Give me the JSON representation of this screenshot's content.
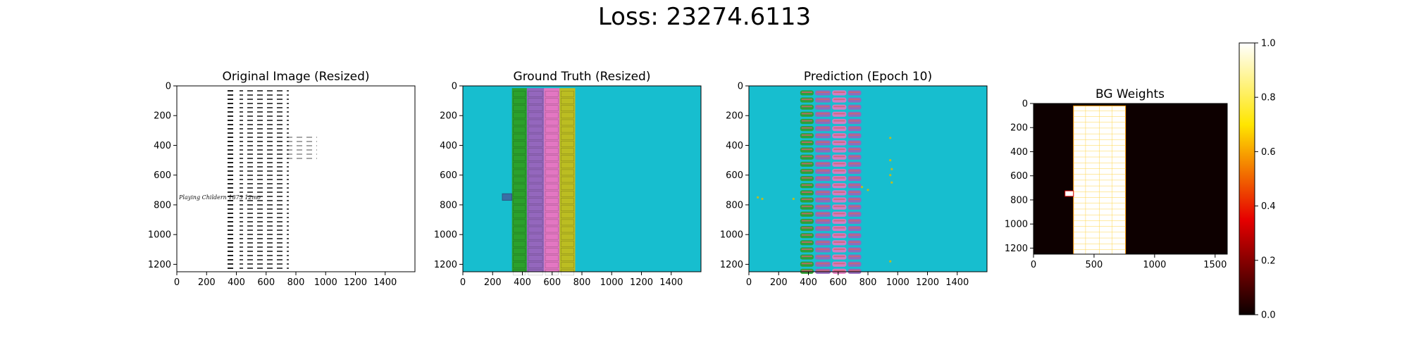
{
  "figure": {
    "suptitle": "Loss: 23274.6113"
  },
  "colors": {
    "background_cyan": "#17becf",
    "green": "#2ca02c",
    "purple": "#9467bd",
    "pink": "#e377c2",
    "olive": "#bcbd22",
    "blue": "#3a6ea5",
    "weights_bg": "#0d0000",
    "weights_fg": "#ffffff",
    "weights_line": "#ff9900"
  },
  "chart_data": [
    {
      "type": "heatmap",
      "title": "Original Image (Resized)",
      "x_ticks": [
        "0",
        "200",
        "400",
        "600",
        "800",
        "1000",
        "1200",
        "1400"
      ],
      "y_ticks": [
        "0",
        "200",
        "400",
        "600",
        "800",
        "1000",
        "1200"
      ],
      "xlim": [
        0,
        1600
      ],
      "ylim": [
        1250,
        0
      ],
      "content": "handwritten ledger columns on white background",
      "handwritten_text": "Playing Childern 1873 12mo"
    },
    {
      "type": "heatmap",
      "title": "Ground Truth (Resized)",
      "x_ticks": [
        "0",
        "200",
        "400",
        "600",
        "800",
        "1000",
        "1200",
        "1400"
      ],
      "y_ticks": [
        "0",
        "200",
        "400",
        "600",
        "800",
        "1000",
        "1200"
      ],
      "xlim": [
        0,
        1600
      ],
      "ylim": [
        1250,
        0
      ],
      "columns": [
        {
          "class": "green",
          "x": [
            330,
            430
          ]
        },
        {
          "class": "purple",
          "x": [
            430,
            545
          ]
        },
        {
          "class": "pink",
          "x": [
            545,
            650
          ]
        },
        {
          "class": "olive",
          "x": [
            650,
            755
          ]
        }
      ],
      "extra_box": {
        "class": "blue",
        "x": [
          265,
          330
        ],
        "y": [
          725,
          770
        ]
      }
    },
    {
      "type": "heatmap",
      "title": "Prediction (Epoch 10)",
      "x_ticks": [
        "0",
        "200",
        "400",
        "600",
        "800",
        "1000",
        "1200",
        "1400"
      ],
      "y_ticks": [
        "0",
        "200",
        "400",
        "600",
        "800",
        "1000",
        "1200"
      ],
      "xlim": [
        0,
        1600
      ],
      "ylim": [
        1250,
        0
      ],
      "columns": [
        {
          "class": "green",
          "x": [
            340,
            440
          ]
        },
        {
          "class": "purple",
          "x": [
            440,
            555
          ]
        },
        {
          "class": "pink",
          "x": [
            555,
            660
          ]
        },
        {
          "class": "purple",
          "x": [
            660,
            760
          ]
        }
      ]
    },
    {
      "type": "heatmap",
      "title": "BG Weights",
      "x_ticks": [
        "0",
        "500",
        "1000",
        "1500"
      ],
      "y_ticks": [
        "0",
        "200",
        "400",
        "600",
        "800",
        "1000",
        "1200"
      ],
      "xlim": [
        0,
        1600
      ],
      "ylim": [
        1250,
        0
      ],
      "bright_region": {
        "x": [
          330,
          760
        ],
        "y": [
          20,
          1250
        ]
      },
      "notch": {
        "x": [
          260,
          330
        ],
        "y": [
          725,
          770
        ]
      },
      "colorbar": {
        "min": 0.0,
        "max": 1.0,
        "ticks": [
          "0.0",
          "0.2",
          "0.4",
          "0.6",
          "0.8",
          "1.0"
        ],
        "colormap": "hot"
      }
    }
  ]
}
